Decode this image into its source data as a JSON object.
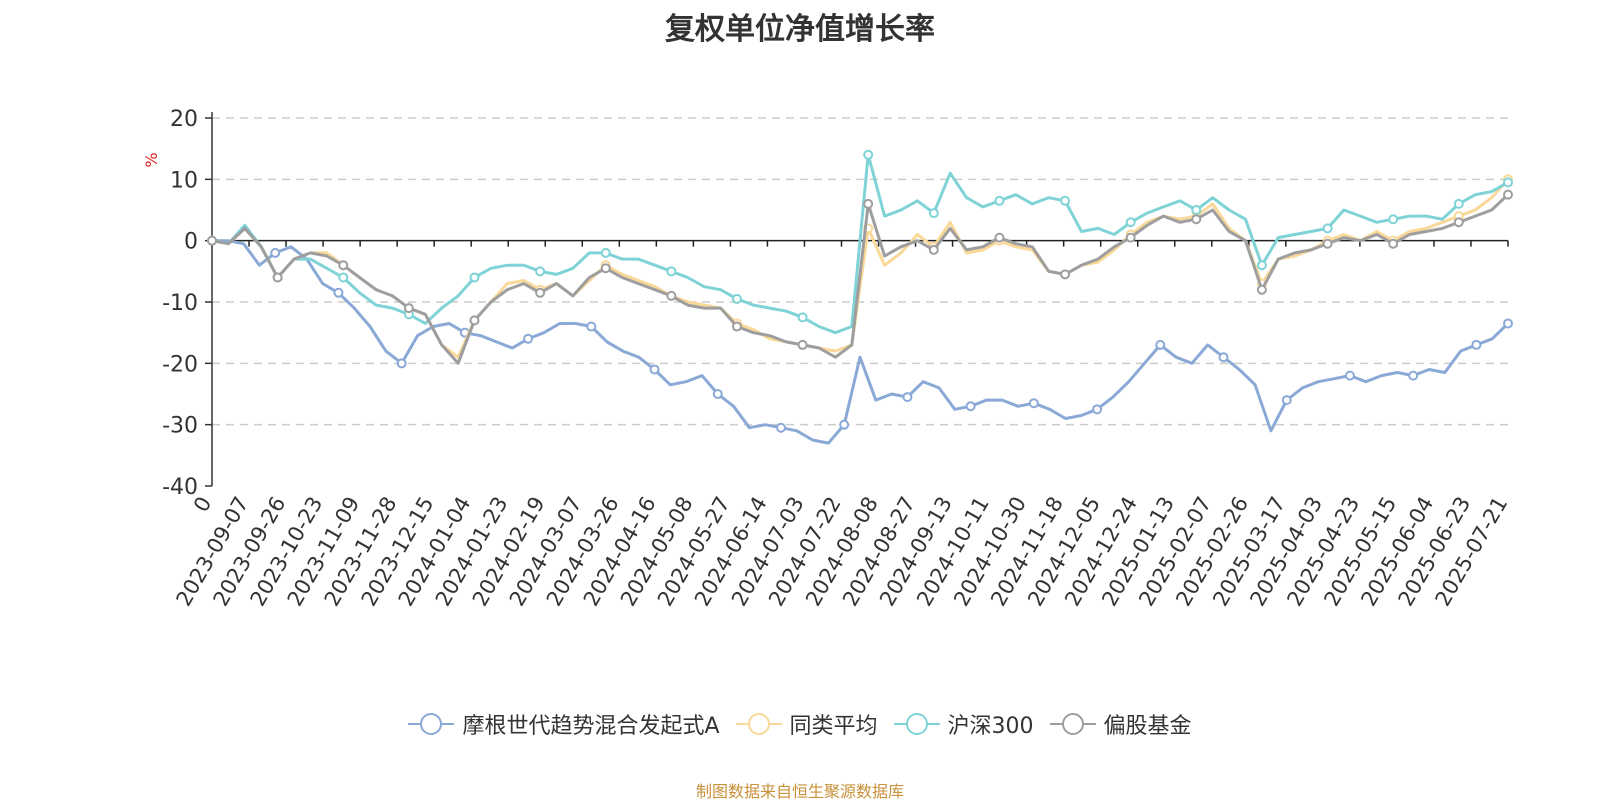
{
  "chart_data": {
    "type": "line",
    "title": "复权单位净值增长率",
    "ylabel": "%",
    "ylim": [
      -40,
      20
    ],
    "yticks": [
      20,
      10,
      0,
      -10,
      -20,
      -30,
      -40
    ],
    "grid": true,
    "legend_position": "bottom",
    "x_tick_labels": [
      "0",
      "2023-09-07",
      "2023-09-26",
      "2023-10-23",
      "2023-11-09",
      "2023-11-28",
      "2023-12-15",
      "2024-01-04",
      "2024-01-23",
      "2024-02-19",
      "2024-03-07",
      "2024-03-26",
      "2024-04-16",
      "2024-05-08",
      "2024-05-27",
      "2024-06-14",
      "2024-07-03",
      "2024-07-22",
      "2024-08-08",
      "2024-08-27",
      "2024-09-13",
      "2024-10-11",
      "2024-10-30",
      "2024-11-18",
      "2024-12-05",
      "2024-12-24",
      "2025-01-13",
      "2025-02-07",
      "2025-02-26",
      "2025-03-17",
      "2025-04-03",
      "2025-04-23",
      "2025-05-15",
      "2025-06-04",
      "2025-06-23",
      "2025-07-21"
    ],
    "series": [
      {
        "name": "摩根世代趋势混合发起式A",
        "color": "#8aa9d6",
        "values": [
          0,
          0,
          -0.5,
          -4,
          -2,
          -1,
          -3,
          -7,
          -8.5,
          -11,
          -14,
          -18,
          -20,
          -15.5,
          -14,
          -13.5,
          -15,
          -15.5,
          -16.5,
          -17.5,
          -16,
          -15,
          -13.5,
          -13.5,
          -14,
          -16.5,
          -18,
          -19,
          -21,
          -23.5,
          -23,
          -22,
          -25,
          -27,
          -30.5,
          -30,
          -30.5,
          -31,
          -32.5,
          -33,
          -30,
          -19,
          -26,
          -25,
          -25.5,
          -23,
          -24,
          -27.5,
          -27,
          -26,
          -26,
          -27,
          -26.5,
          -27.5,
          -29,
          -28.5,
          -27.5,
          -25.5,
          -23,
          -20,
          -17,
          -19,
          -20,
          -17,
          -19,
          -21,
          -23.5,
          -31,
          -26,
          -24,
          -23,
          -22.5,
          -22,
          -23,
          -22,
          -21.5,
          -22,
          -21,
          -21.5,
          -18,
          -17,
          -16,
          -13.5
        ]
      },
      {
        "name": "同类平均",
        "color": "#f9d898",
        "values": [
          0,
          -0.5,
          2,
          -1,
          -6,
          -3,
          -2,
          -2,
          -4,
          -6,
          -8,
          -9,
          -11,
          -12,
          -17,
          -19,
          -13,
          -10,
          -7,
          -6.5,
          -8,
          -7,
          -9,
          -6.5,
          -4,
          -5.5,
          -6.5,
          -7.5,
          -9,
          -10,
          -10.5,
          -11,
          -13.5,
          -14.5,
          -16,
          -16.5,
          -17,
          -17.5,
          -18,
          -17,
          2,
          -4,
          -2,
          1,
          -1,
          3,
          -2,
          -1.5,
          0,
          -1,
          -1.5,
          -5,
          -5.5,
          -4,
          -3.5,
          -1.5,
          1,
          3,
          4,
          3.5,
          4,
          6,
          2,
          0,
          -7,
          -3,
          -2.5,
          -1.5,
          0,
          1,
          0,
          1.5,
          0,
          1.5,
          2,
          3,
          4,
          5,
          7,
          10
        ]
      },
      {
        "name": "沪深300",
        "color": "#7fd3d6",
        "values": [
          0,
          -0.5,
          2.5,
          -1,
          -6,
          -3,
          -3,
          -4.5,
          -6,
          -8.5,
          -10.5,
          -11,
          -12,
          -13.5,
          -11,
          -9,
          -6,
          -4.5,
          -4,
          -4,
          -5,
          -5.5,
          -4.5,
          -2,
          -2,
          -3,
          -3,
          -4,
          -5,
          -6,
          -7.5,
          -8,
          -9.5,
          -10.5,
          -11,
          -11.5,
          -12.5,
          -14,
          -15,
          -14,
          14,
          4,
          5,
          6.5,
          4.5,
          11,
          7,
          5.5,
          6.5,
          7.5,
          6,
          7,
          6.5,
          1.5,
          2,
          1,
          3,
          4.5,
          5.5,
          6.5,
          5,
          7,
          5,
          3.5,
          -4,
          0.5,
          1,
          1.5,
          2,
          5,
          4,
          3,
          3.5,
          4,
          4,
          3.5,
          6,
          7.5,
          8,
          9.5
        ]
      },
      {
        "name": "偏股基金",
        "color": "#9e9e9e",
        "values": [
          0,
          -0.5,
          2,
          -1,
          -6,
          -3,
          -2,
          -2.5,
          -4,
          -6,
          -8,
          -9,
          -11,
          -12,
          -17,
          -20,
          -13,
          -10,
          -8,
          -7,
          -8.5,
          -7,
          -9,
          -6,
          -4.5,
          -6,
          -7,
          -8,
          -9,
          -10.5,
          -11,
          -11,
          -14,
          -15,
          -15.5,
          -16.5,
          -17,
          -17.5,
          -19,
          -17,
          6,
          -2.5,
          -1,
          0,
          -1.5,
          2,
          -1.5,
          -1,
          0.5,
          -0.5,
          -1,
          -5,
          -5.5,
          -4,
          -3,
          -1,
          0.5,
          2.5,
          4,
          3,
          3.5,
          5,
          1.5,
          0,
          -8,
          -3,
          -2,
          -1.5,
          -0.5,
          0.5,
          0,
          1,
          -0.5,
          1,
          1.5,
          2,
          3,
          4,
          5,
          7.5
        ]
      }
    ]
  },
  "source_note": "制图数据来自恒生聚源数据库"
}
